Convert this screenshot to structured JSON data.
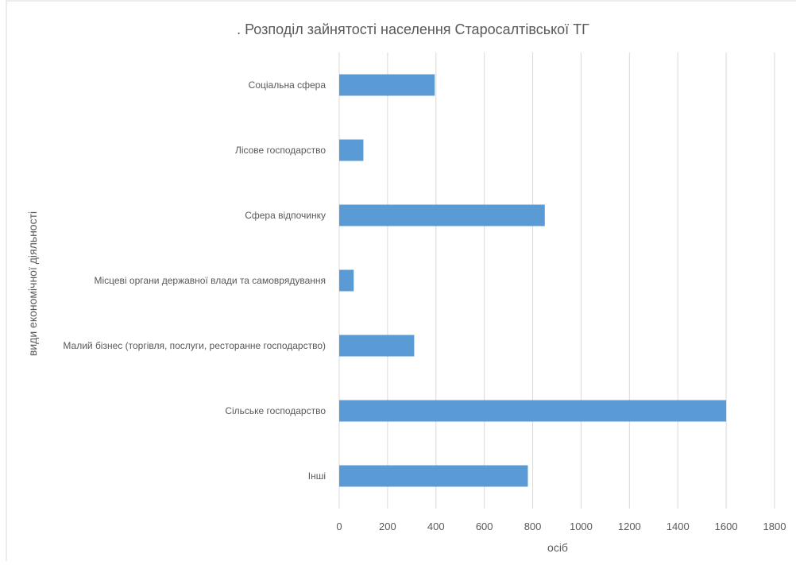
{
  "chart_data": {
    "type": "bar",
    "orientation": "horizontal",
    "title": ". Розподіл зайнятості населення Старосалтівської ТГ",
    "xlabel": "осіб",
    "ylabel": "види економічної діяльності",
    "categories": [
      "Соціальна сфера",
      "Лісове господарство",
      "Сфера відпочинку",
      "Місцеві органи державної влади та самоврядування",
      "Малий бізнес (торгівля, послуги, ресторанне господарство)",
      "Сільське господарство",
      "Інші"
    ],
    "values": [
      395,
      100,
      850,
      60,
      310,
      1600,
      780
    ],
    "xlim": [
      0,
      1800
    ],
    "xticks": [
      0,
      200,
      400,
      600,
      800,
      1000,
      1200,
      1400,
      1600,
      1800
    ],
    "grid": "vertical",
    "legend": "none",
    "bar_color": "#5b9bd5",
    "grid_color": "#d9d9d9",
    "text_color": "#595959"
  }
}
